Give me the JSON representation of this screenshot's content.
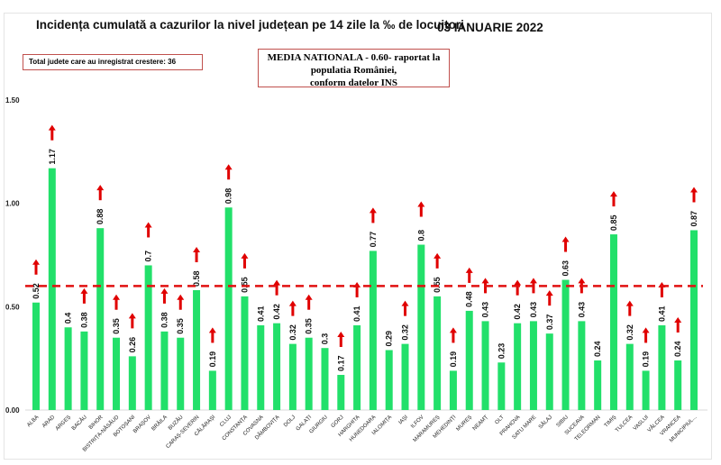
{
  "header": {
    "title": "Incidența cumulată a cazurilor la nivel județean pe 14 zile la ‰ de locuitori",
    "date": "03 IANUARIE 2022",
    "total_box": "Total judete care au inregistrat crestere: 36",
    "media_line1": "MEDIA NATIONALA - 0.60-  raportat la populatia României,",
    "media_line2": "conform datelor INS"
  },
  "chart_data": {
    "type": "bar",
    "title": "Incidența cumulată a cazurilor la nivel județean pe 14 zile la ‰ de locuitori",
    "ylim": [
      0,
      1.5
    ],
    "yticks": [
      "0.00",
      "0.50",
      "1.00",
      "1.50"
    ],
    "grid": false,
    "reference_line": {
      "value": 0.6,
      "color": "#e01010",
      "style": "dashed"
    },
    "bar_color": "#22e06a",
    "arrow_color": "#e00000",
    "categories": [
      "ALBA",
      "ARAD",
      "ARGEȘ",
      "BACĂU",
      "BIHOR",
      "BISTRIȚA-NĂSĂUD",
      "BOTOȘANI",
      "BRAȘOV",
      "BRĂILA",
      "BUZĂU",
      "CARAȘ-SEVERIN",
      "CĂLĂRAȘI",
      "CLUJ",
      "CONSTANȚA",
      "COVASNA",
      "DÂMBOVIȚA",
      "DOLJ",
      "GALAȚI",
      "GIURGIU",
      "GORJ",
      "HARGHITA",
      "HUNEDOARA",
      "IALOMIȚA",
      "IAȘI",
      "ILFOV",
      "MARAMUREȘ",
      "MEHEDINȚI",
      "MUREȘ",
      "NEAMȚ",
      "OLT",
      "PRAHOVA",
      "SATU MARE",
      "SĂLAJ",
      "SIBIU",
      "SUCEAVA",
      "TELEORMAN",
      "TIMIȘ",
      "TULCEA",
      "VASLUI",
      "VÂLCEA",
      "VRANCEA",
      "MUNICIPIUL..."
    ],
    "values": [
      0.52,
      1.17,
      0.4,
      0.38,
      0.88,
      0.35,
      0.26,
      0.7,
      0.38,
      0.35,
      0.58,
      0.19,
      0.98,
      0.55,
      0.41,
      0.42,
      0.32,
      0.35,
      0.3,
      0.17,
      0.41,
      0.77,
      0.29,
      0.32,
      0.8,
      0.55,
      0.19,
      0.48,
      0.43,
      0.23,
      0.42,
      0.43,
      0.37,
      0.63,
      0.43,
      0.24,
      0.85,
      0.32,
      0.19,
      0.41,
      0.24,
      0.87
    ],
    "labels": [
      "0.52",
      "1.17",
      "0.4",
      "0.38",
      "0.88",
      "0.35",
      "0.26",
      "0.7",
      "0.38",
      "0.35",
      "0.58",
      "0.19",
      "0.98",
      "0.55",
      "0.41",
      "0.42",
      "0.32",
      "0.35",
      "0.3",
      "0.17",
      "0.41",
      "0.77",
      "0.29",
      "0.32",
      "0.8",
      "0.55",
      "0.19",
      "0.48",
      "0.43",
      "0.23",
      "0.42",
      "0.43",
      "0.37",
      "0.63",
      "0.43",
      "0.24",
      "0.85",
      "0.32",
      "0.19",
      "0.41",
      "0.24",
      "0.87"
    ],
    "increase": [
      true,
      true,
      false,
      true,
      true,
      true,
      true,
      true,
      true,
      true,
      true,
      true,
      true,
      true,
      false,
      true,
      true,
      true,
      false,
      true,
      true,
      true,
      false,
      true,
      true,
      true,
      true,
      true,
      true,
      false,
      true,
      true,
      true,
      true,
      true,
      false,
      true,
      true,
      true,
      true,
      true,
      true
    ]
  }
}
